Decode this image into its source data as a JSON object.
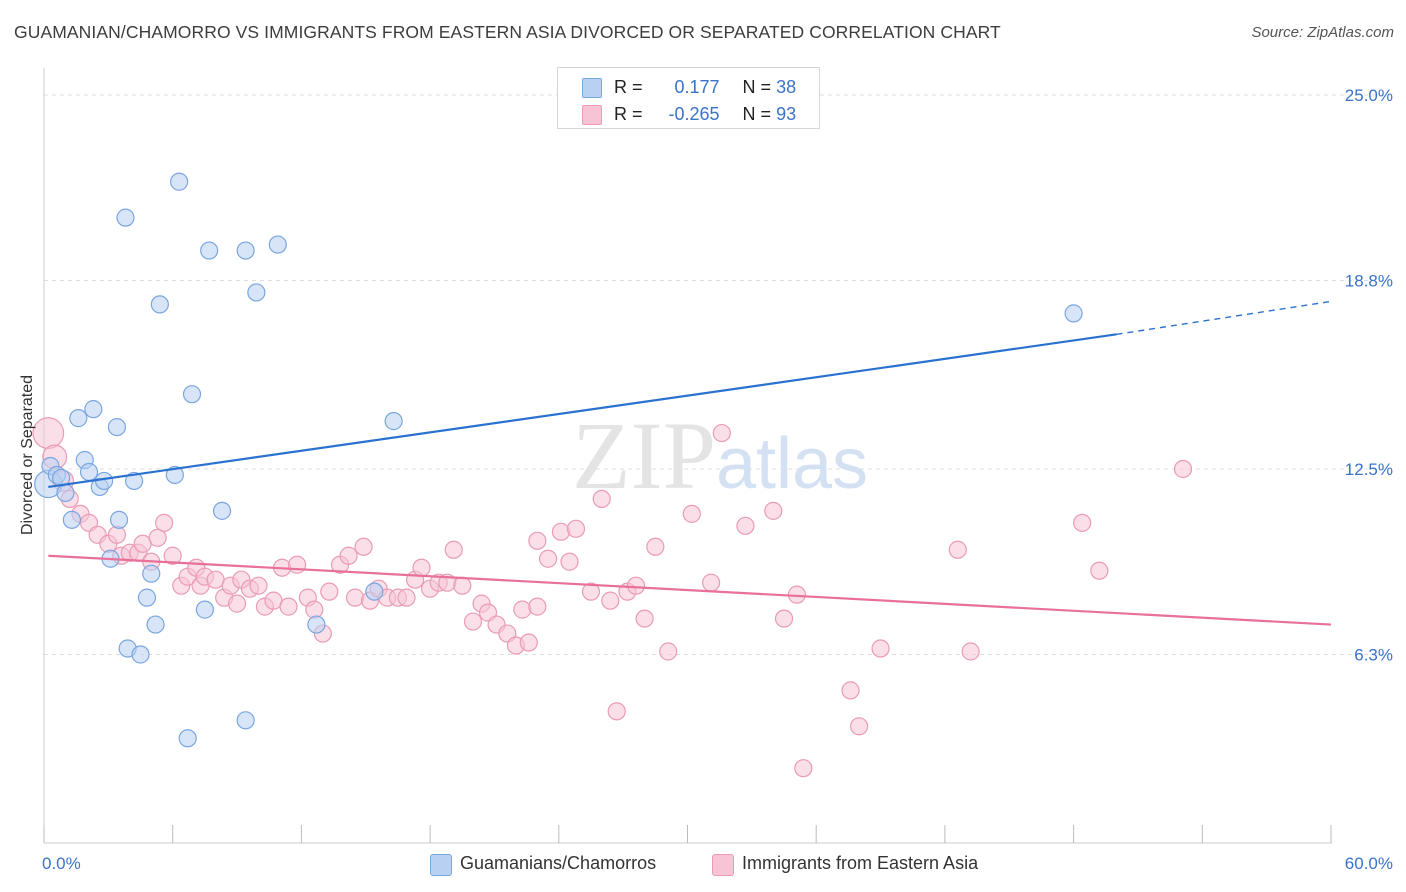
{
  "title": "GUAMANIAN/CHAMORRO VS IMMIGRANTS FROM EASTERN ASIA DIVORCED OR SEPARATED CORRELATION CHART",
  "source": "Source: ZipAtlas.com",
  "watermark": "ZIPatlas",
  "colors": {
    "blue_fill": "#b8d0f2",
    "blue_stroke": "#7aa6e0",
    "blue_line": "#2b72d0",
    "pink_fill": "#f6c4d5",
    "pink_stroke": "#ea9bb6",
    "pink_line": "#e8709b",
    "axis_label": "#3a73c9",
    "grid": "#dddddd"
  },
  "legend_top": {
    "rows": [
      {
        "r_label": "R =",
        "r_value": "0.177",
        "n_label": "N =",
        "n_value": "38",
        "color": "blue"
      },
      {
        "r_label": "R =",
        "r_value": "-0.265",
        "n_label": "N =",
        "n_value": "93",
        "color": "pink"
      }
    ]
  },
  "legend_bottom": {
    "items": [
      {
        "label": "Guamanians/Chamorros",
        "color": "blue"
      },
      {
        "label": "Immigrants from Eastern Asia",
        "color": "pink"
      }
    ]
  },
  "chart_data": {
    "type": "scatter",
    "xlabel": "",
    "ylabel": "Divorced or Separated",
    "xlim": [
      0,
      60
    ],
    "ylim": [
      0,
      25.5
    ],
    "x_tick_labels": [
      "0.0%",
      "60.0%"
    ],
    "y_ticks": [
      6.3,
      12.5,
      18.8,
      25.0
    ],
    "y_tick_labels": [
      "6.3%",
      "12.5%",
      "18.8%",
      "25.0%"
    ],
    "grid": "horizontal dashed",
    "legend_position": "top-center and bottom",
    "series": [
      {
        "name": "Guamanians/Chamorros",
        "color": "blue",
        "trend": {
          "x0": 0.2,
          "y0": 11.9,
          "x1": 50.0,
          "y1": 17.0,
          "dash_to_x": 60.0,
          "dash_to_y": 18.1
        },
        "points": [
          [
            0.2,
            12.0,
            1.6
          ],
          [
            0.3,
            12.6,
            1.0
          ],
          [
            0.6,
            12.3,
            1.0
          ],
          [
            0.8,
            12.2,
            1.0
          ],
          [
            1.0,
            11.7,
            1.0
          ],
          [
            1.3,
            10.8,
            1.0
          ],
          [
            1.6,
            14.2,
            1.0
          ],
          [
            1.9,
            12.8,
            1.0
          ],
          [
            2.1,
            12.4,
            1.0
          ],
          [
            2.3,
            14.5,
            1.0
          ],
          [
            2.6,
            11.9,
            1.0
          ],
          [
            2.8,
            12.1,
            1.0
          ],
          [
            3.1,
            9.5,
            1.0
          ],
          [
            3.4,
            13.9,
            1.0
          ],
          [
            3.5,
            10.8,
            1.0
          ],
          [
            3.8,
            20.9,
            1.0
          ],
          [
            3.9,
            6.5,
            1.0
          ],
          [
            4.2,
            12.1,
            1.0
          ],
          [
            4.5,
            6.3,
            1.0
          ],
          [
            4.8,
            8.2,
            1.0
          ],
          [
            5.0,
            9.0,
            1.0
          ],
          [
            5.2,
            7.3,
            1.0
          ],
          [
            5.4,
            18.0,
            1.0
          ],
          [
            6.1,
            12.3,
            1.0
          ],
          [
            6.3,
            22.1,
            1.0
          ],
          [
            6.7,
            3.5,
            1.0
          ],
          [
            6.9,
            15.0,
            1.0
          ],
          [
            7.5,
            7.8,
            1.0
          ],
          [
            7.7,
            19.8,
            1.0
          ],
          [
            8.3,
            11.1,
            1.0
          ],
          [
            9.4,
            4.1,
            1.0
          ],
          [
            9.4,
            19.8,
            1.0
          ],
          [
            9.9,
            18.4,
            1.0
          ],
          [
            10.9,
            20.0,
            1.0
          ],
          [
            12.7,
            7.3,
            1.0
          ],
          [
            15.4,
            8.4,
            1.0
          ],
          [
            16.3,
            14.1,
            1.0
          ],
          [
            48.0,
            17.7,
            1.0
          ]
        ]
      },
      {
        "name": "Immigrants from Eastern Asia",
        "color": "pink",
        "trend": {
          "x0": 0.2,
          "y0": 9.6,
          "x1": 60.0,
          "y1": 7.3
        },
        "points": [
          [
            0.2,
            13.7,
            1.8
          ],
          [
            0.5,
            12.9,
            1.4
          ],
          [
            0.9,
            12.1,
            1.2
          ],
          [
            1.2,
            11.5,
            1.0
          ],
          [
            1.7,
            11.0,
            1.0
          ],
          [
            2.1,
            10.7,
            1.0
          ],
          [
            2.5,
            10.3,
            1.0
          ],
          [
            3.0,
            10.0,
            1.0
          ],
          [
            3.4,
            10.3,
            1.0
          ],
          [
            3.6,
            9.6,
            1.0
          ],
          [
            4.0,
            9.7,
            1.0
          ],
          [
            4.4,
            9.7,
            1.0
          ],
          [
            4.6,
            10.0,
            1.0
          ],
          [
            5.0,
            9.4,
            1.0
          ],
          [
            5.3,
            10.2,
            1.0
          ],
          [
            5.6,
            10.7,
            1.0
          ],
          [
            6.0,
            9.6,
            1.0
          ],
          [
            6.4,
            8.6,
            1.0
          ],
          [
            6.7,
            8.9,
            1.0
          ],
          [
            7.1,
            9.2,
            1.0
          ],
          [
            7.3,
            8.6,
            1.0
          ],
          [
            7.5,
            8.9,
            1.0
          ],
          [
            8.0,
            8.8,
            1.0
          ],
          [
            8.4,
            8.2,
            1.0
          ],
          [
            8.7,
            8.6,
            1.0
          ],
          [
            9.0,
            8.0,
            1.0
          ],
          [
            9.2,
            8.8,
            1.0
          ],
          [
            9.6,
            8.5,
            1.0
          ],
          [
            10.0,
            8.6,
            1.0
          ],
          [
            10.3,
            7.9,
            1.0
          ],
          [
            10.7,
            8.1,
            1.0
          ],
          [
            11.1,
            9.2,
            1.0
          ],
          [
            11.4,
            7.9,
            1.0
          ],
          [
            11.8,
            9.3,
            1.0
          ],
          [
            12.3,
            8.2,
            1.0
          ],
          [
            12.6,
            7.8,
            1.0
          ],
          [
            13.0,
            7.0,
            1.0
          ],
          [
            13.3,
            8.4,
            1.0
          ],
          [
            13.8,
            9.3,
            1.0
          ],
          [
            14.2,
            9.6,
            1.0
          ],
          [
            14.5,
            8.2,
            1.0
          ],
          [
            14.9,
            9.9,
            1.0
          ],
          [
            15.2,
            8.1,
            1.0
          ],
          [
            15.6,
            8.5,
            1.0
          ],
          [
            16.0,
            8.2,
            1.0
          ],
          [
            16.5,
            8.2,
            1.0
          ],
          [
            16.9,
            8.2,
            1.0
          ],
          [
            17.3,
            8.8,
            1.0
          ],
          [
            17.6,
            9.2,
            1.0
          ],
          [
            18.0,
            8.5,
            1.0
          ],
          [
            18.4,
            8.7,
            1.0
          ],
          [
            18.8,
            8.7,
            1.0
          ],
          [
            19.1,
            9.8,
            1.0
          ],
          [
            19.5,
            8.6,
            1.0
          ],
          [
            20.0,
            7.4,
            1.0
          ],
          [
            20.4,
            8.0,
            1.0
          ],
          [
            20.7,
            7.7,
            1.0
          ],
          [
            21.1,
            7.3,
            1.0
          ],
          [
            21.6,
            7.0,
            1.0
          ],
          [
            22.0,
            6.6,
            1.0
          ],
          [
            22.3,
            7.8,
            1.0
          ],
          [
            22.6,
            6.7,
            1.0
          ],
          [
            23.0,
            10.1,
            1.0
          ],
          [
            23.5,
            9.5,
            1.0
          ],
          [
            24.1,
            10.4,
            1.0
          ],
          [
            24.5,
            9.4,
            1.0
          ],
          [
            24.8,
            10.5,
            1.0
          ],
          [
            25.5,
            8.4,
            1.0
          ],
          [
            26.0,
            11.5,
            1.0
          ],
          [
            26.4,
            8.1,
            1.0
          ],
          [
            26.7,
            4.4,
            1.0
          ],
          [
            27.2,
            8.4,
            1.0
          ],
          [
            27.6,
            8.6,
            1.0
          ],
          [
            28.0,
            7.5,
            1.0
          ],
          [
            28.5,
            9.9,
            1.0
          ],
          [
            29.1,
            6.4,
            1.0
          ],
          [
            30.2,
            11.0,
            1.0
          ],
          [
            31.1,
            8.7,
            1.0
          ],
          [
            31.6,
            13.7,
            1.0
          ],
          [
            32.7,
            10.6,
            1.0
          ],
          [
            34.0,
            11.1,
            1.0
          ],
          [
            34.5,
            7.5,
            1.0
          ],
          [
            35.1,
            8.3,
            1.0
          ],
          [
            35.4,
            2.5,
            1.0
          ],
          [
            37.6,
            5.1,
            1.0
          ],
          [
            38.0,
            3.9,
            1.0
          ],
          [
            39.0,
            6.5,
            1.0
          ],
          [
            42.6,
            9.8,
            1.0
          ],
          [
            43.2,
            6.4,
            1.0
          ],
          [
            48.4,
            10.7,
            1.0
          ],
          [
            49.2,
            9.1,
            1.0
          ],
          [
            53.1,
            12.5,
            1.0
          ],
          [
            23.0,
            7.9,
            1.0
          ]
        ]
      }
    ]
  }
}
